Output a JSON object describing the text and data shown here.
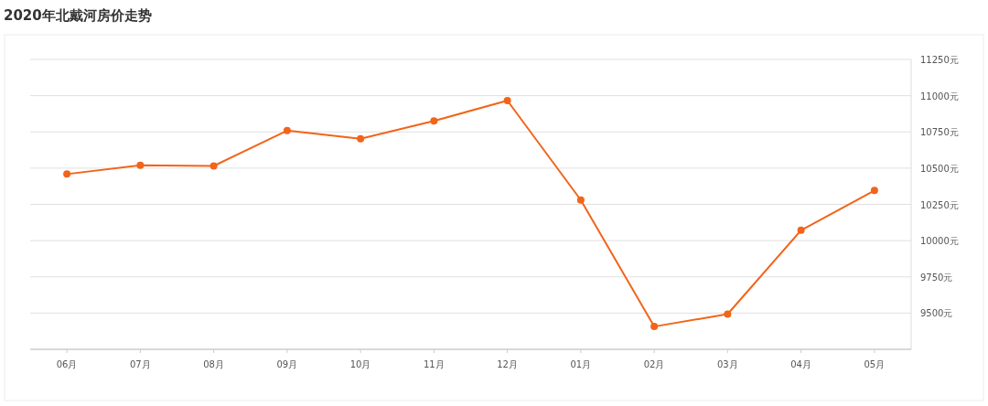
{
  "chart_data": {
    "type": "line",
    "title": "2020年北戴河房价走势",
    "categories": [
      "06月",
      "07月",
      "08月",
      "09月",
      "10月",
      "11月",
      "12月",
      "01月",
      "02月",
      "03月",
      "04月",
      "05月"
    ],
    "series": [
      {
        "color": "#f26419",
        "values": [
          10459,
          10519,
          10515,
          10759,
          10703,
          10826,
          10966,
          10280,
          9407,
          9493,
          10071,
          10346
        ]
      }
    ],
    "ylim": [
      9250,
      11250
    ],
    "yticks": [
      {
        "value": 9500,
        "label": "9500元"
      },
      {
        "value": 9750,
        "label": "9750元"
      },
      {
        "value": 10000,
        "label": "10000元"
      },
      {
        "value": 10250,
        "label": "10250元"
      },
      {
        "value": 10500,
        "label": "10500元"
      },
      {
        "value": 10750,
        "label": "10750元"
      },
      {
        "value": 11000,
        "label": "11000元"
      },
      {
        "value": 11250,
        "label": "11250元"
      }
    ],
    "grid": "y",
    "marker": "circle",
    "line_style": "solid"
  }
}
